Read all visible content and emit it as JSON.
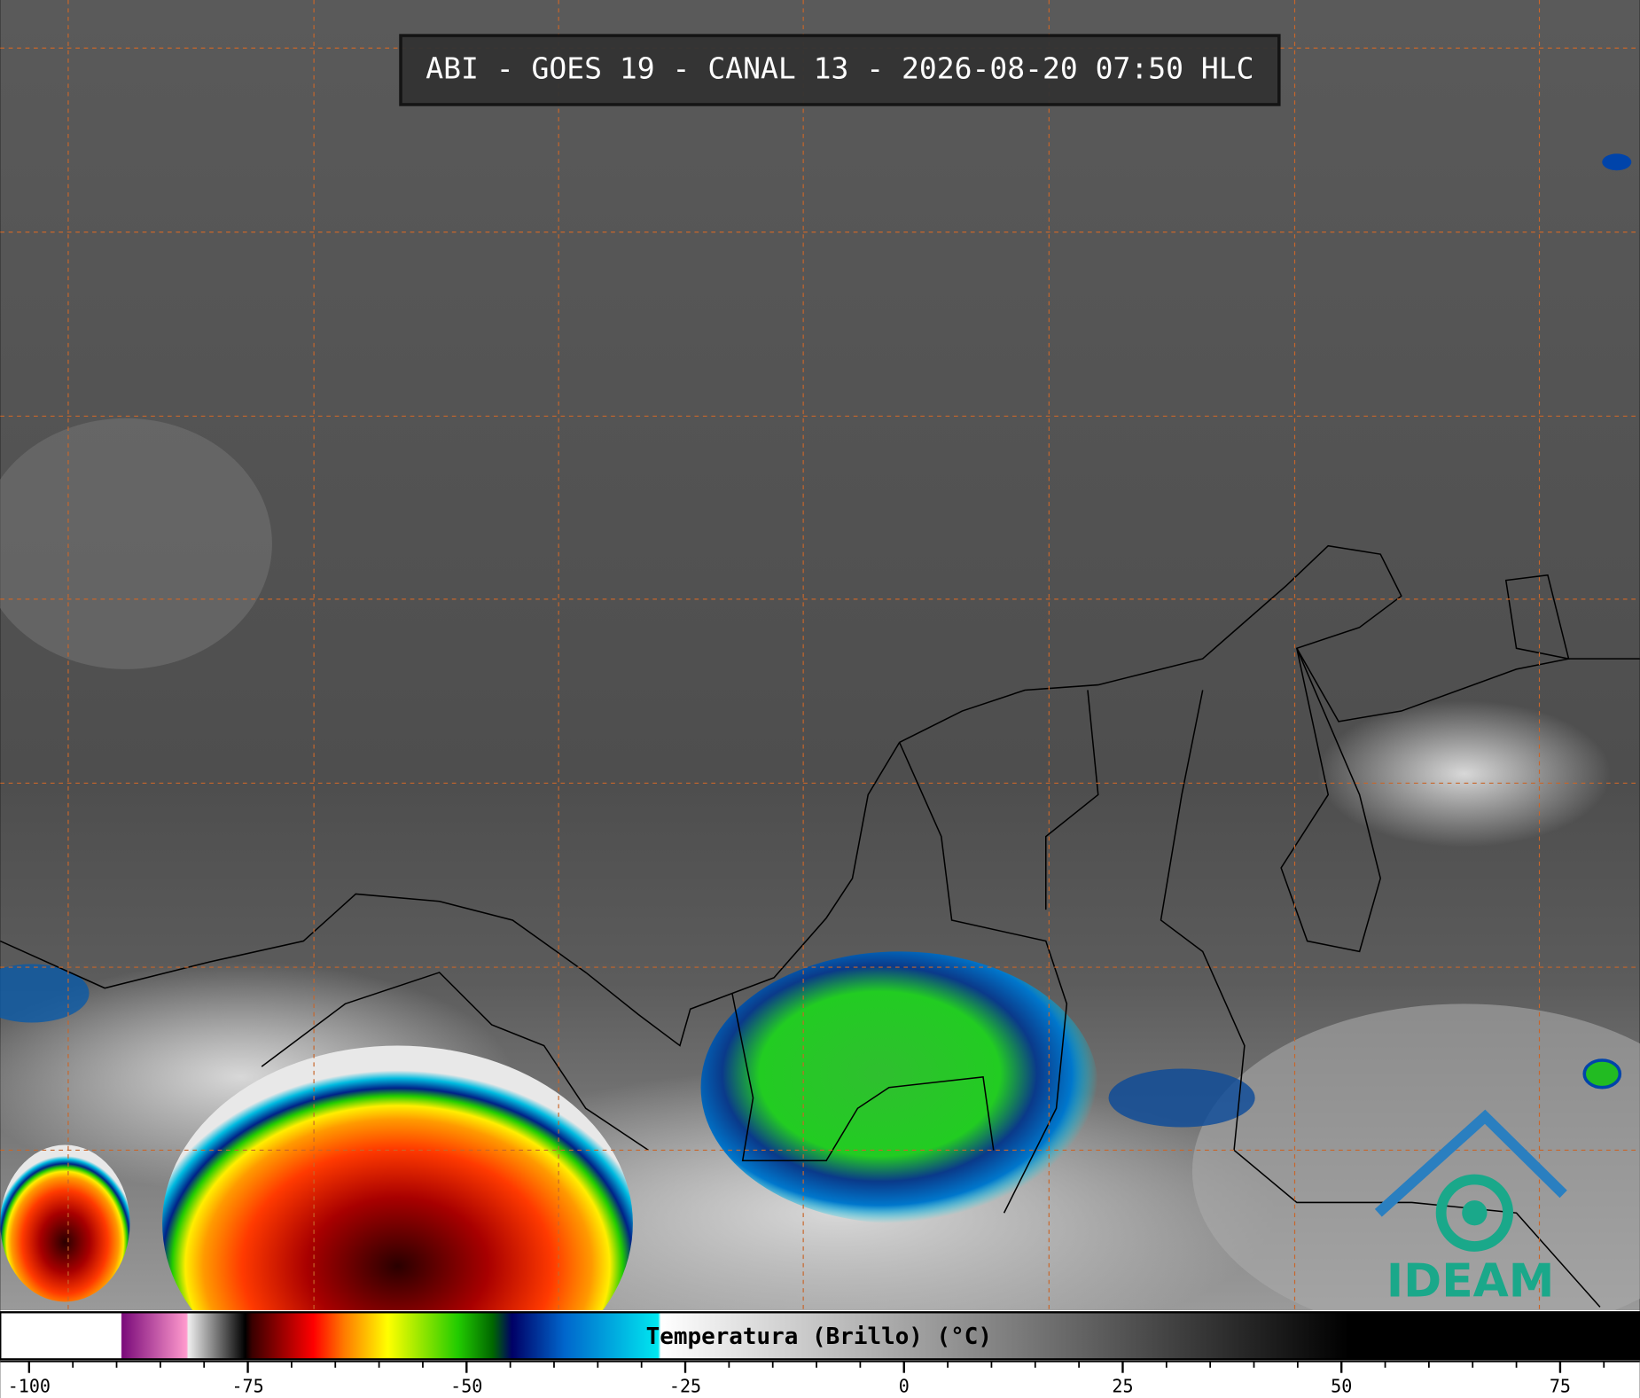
{
  "header": {
    "title": "ABI - GOES 19 - CANAL 13 - 2026-08-20 07:50 HLC"
  },
  "logo": "IDEAM",
  "colorbar": {
    "label": "Temperatura (Brillo) (°C)",
    "lim": [
      -103.3,
      84.1
    ],
    "ticks": [
      -100,
      -75,
      -50,
      -25,
      0,
      25,
      50,
      75
    ],
    "minor_ticks": [
      -100,
      -95,
      -90,
      -85,
      -80,
      -75,
      -70,
      -65,
      -60,
      -55,
      -50,
      -45,
      -40,
      -35,
      -30,
      -25,
      -20,
      -15,
      -10,
      -5,
      0,
      5,
      10,
      15,
      20,
      25,
      30,
      35,
      40,
      45,
      50,
      55,
      60,
      65,
      70,
      75,
      80
    ],
    "stops": [
      {
        "value": -103.3,
        "color": "#ffffff"
      },
      {
        "value": -89.5,
        "color": "#ffffff"
      },
      {
        "value": -89.4,
        "color": "#7a0a7a"
      },
      {
        "value": -82,
        "color": "#ff9acd"
      },
      {
        "value": -81.8,
        "color": "#eeeeee"
      },
      {
        "value": -75.3,
        "color": "#000000"
      },
      {
        "value": -74.5,
        "color": "#3a0000"
      },
      {
        "value": -67.5,
        "color": "#ff0000"
      },
      {
        "value": -64,
        "color": "#ff7a00"
      },
      {
        "value": -59,
        "color": "#ffff00"
      },
      {
        "value": -51,
        "color": "#22cc00"
      },
      {
        "value": -47,
        "color": "#006600"
      },
      {
        "value": -44.8,
        "color": "#000066"
      },
      {
        "value": -38.8,
        "color": "#0066cc"
      },
      {
        "value": -28.1,
        "color": "#00e8f0"
      },
      {
        "value": -27.8,
        "color": "#ffffff"
      },
      {
        "value": 50.9,
        "color": "#000000"
      },
      {
        "value": 84.1,
        "color": "#000000"
      }
    ]
  }
}
